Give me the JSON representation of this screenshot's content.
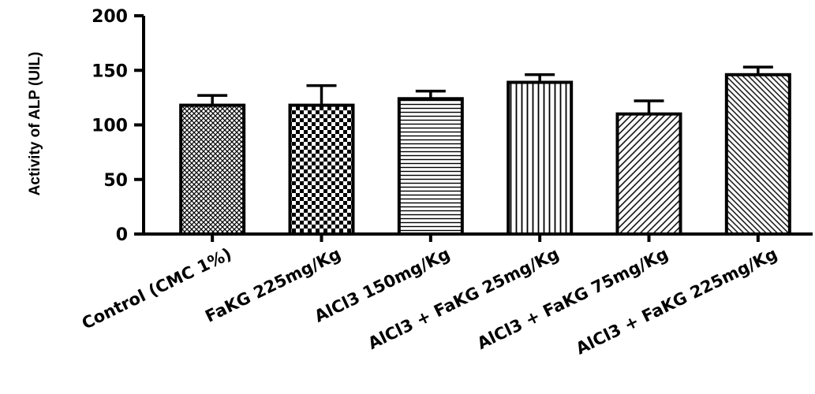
{
  "chart_data": {
    "type": "bar",
    "title": "",
    "xlabel": "",
    "ylabel": "Activity of ALP (UIL)",
    "ylim": [
      0,
      200
    ],
    "yticks": [
      0,
      50,
      100,
      150,
      200
    ],
    "grid": false,
    "categories": [
      "Control (CMC 1%)",
      "FaKG 225mg/Kg",
      "AlCl3 150mg/Kg",
      "AlCl3 + FaKG 25mg/Kg",
      "AlCl3 + FaKG 75mg/Kg",
      "AlCl3 + FaKG 225mg/Kg"
    ],
    "values": [
      118,
      118,
      124,
      139,
      110,
      146
    ],
    "errors": [
      9,
      18,
      7,
      7,
      12,
      7
    ],
    "patterns": [
      "crosshatch-fine",
      "checker",
      "horizontal-lines",
      "vertical-lines",
      "diagonal-lines",
      "diagonal-dense"
    ],
    "colors": {
      "bar_fill": "#ffffff",
      "bar_stroke": "#000000",
      "pattern": "#000000"
    }
  }
}
